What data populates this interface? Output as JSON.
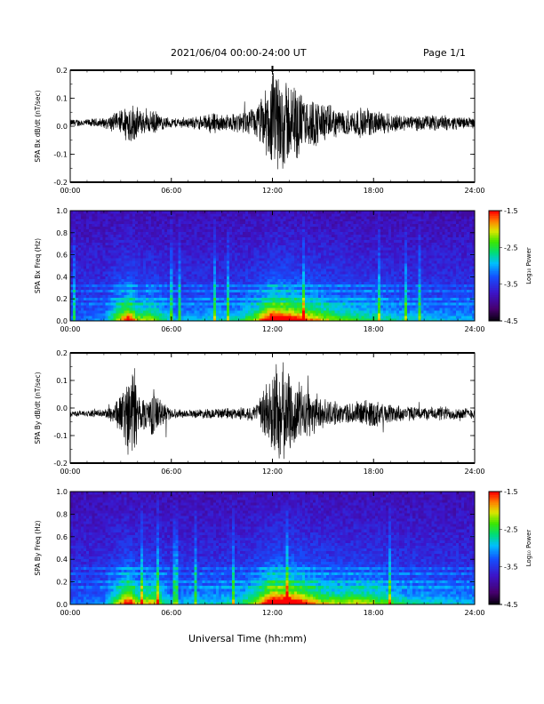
{
  "header": {
    "title": "2021/06/04  00:00-24:00 UT",
    "page": "Page 1/1"
  },
  "x_axis": {
    "label": "Universal Time (hh:mm)",
    "ticks": [
      "00:00",
      "06:00",
      "12:00",
      "18:00",
      "24:00"
    ]
  },
  "chart_data": [
    {
      "type": "line",
      "ylabel": "SPA Bx dB/dt (nT/sec)",
      "xlim": [
        0,
        24
      ],
      "ylim": [
        -0.2,
        0.2
      ],
      "yticks": [
        "-0.2",
        "-0.1",
        "0.0",
        "0.1",
        "0.2"
      ],
      "xticks": [
        "00:00",
        "06:00",
        "12:00",
        "18:00",
        "24:00"
      ],
      "envelope": {
        "x": [
          0,
          1,
          2,
          3,
          3.5,
          4,
          4.5,
          5,
          5.3,
          6,
          7,
          8,
          8.5,
          9,
          10,
          11,
          11.5,
          12,
          12.5,
          13,
          13.5,
          14,
          14.5,
          15,
          16,
          16.5,
          17,
          18,
          19,
          20,
          21,
          22,
          23,
          24
        ],
        "amp": [
          0.015,
          0.015,
          0.02,
          0.05,
          0.09,
          0.06,
          0.04,
          0.05,
          0.03,
          0.02,
          0.02,
          0.03,
          0.05,
          0.03,
          0.04,
          0.06,
          0.12,
          0.2,
          0.2,
          0.17,
          0.14,
          0.09,
          0.1,
          0.08,
          0.05,
          0.05,
          0.06,
          0.05,
          0.04,
          0.03,
          0.03,
          0.03,
          0.025,
          0.02
        ]
      },
      "offset": 0.012
    },
    {
      "type": "heatmap",
      "ylabel": "SPA Bx Freq (Hz)",
      "xlim": [
        0,
        24
      ],
      "ylim": [
        0,
        1.0
      ],
      "yticks": [
        "0.0",
        "0.2",
        "0.4",
        "0.6",
        "0.8",
        "1.0"
      ],
      "xticks": [
        "00:00",
        "06:00",
        "12:00",
        "18:00",
        "24:00"
      ],
      "colorbar": {
        "label": "Log₁₀ Power",
        "range": [
          -4.5,
          -1.5
        ],
        "ticks": [
          "-1.5",
          "-2.5",
          "-3.5",
          "-4.5"
        ]
      },
      "activity": {
        "x": [
          0,
          2,
          3,
          3.5,
          4,
          5,
          6,
          8,
          10,
          11,
          12,
          13,
          14,
          15,
          16,
          18,
          20,
          24
        ],
        "level": [
          0.1,
          0.15,
          0.6,
          0.8,
          0.5,
          0.5,
          0.2,
          0.25,
          0.3,
          0.5,
          0.95,
          0.85,
          0.7,
          0.55,
          0.45,
          0.35,
          0.25,
          0.2
        ]
      },
      "bands_hz": [
        0.15,
        0.2,
        0.28,
        0.32
      ]
    },
    {
      "type": "line",
      "ylabel": "SPA By dB/dt (nT/sec)",
      "xlim": [
        0,
        24
      ],
      "ylim": [
        -0.2,
        0.2
      ],
      "yticks": [
        "-0.2",
        "-0.1",
        "0.0",
        "0.1",
        "0.2"
      ],
      "xticks": [
        "00:00",
        "06:00",
        "12:00",
        "18:00",
        "24:00"
      ],
      "envelope": {
        "x": [
          0,
          1,
          2,
          2.5,
          3,
          3.5,
          3.8,
          4,
          4.5,
          5,
          5.3,
          6,
          7,
          8,
          9,
          10,
          11,
          11.5,
          12,
          12.5,
          13,
          13.5,
          14,
          15,
          16,
          17,
          18,
          18.5,
          19,
          20,
          21,
          22,
          23,
          24
        ],
        "amp": [
          0.012,
          0.012,
          0.015,
          0.04,
          0.08,
          0.17,
          0.2,
          0.1,
          0.06,
          0.1,
          0.06,
          0.02,
          0.015,
          0.02,
          0.02,
          0.025,
          0.03,
          0.1,
          0.2,
          0.2,
          0.17,
          0.13,
          0.1,
          0.06,
          0.04,
          0.05,
          0.06,
          0.04,
          0.04,
          0.03,
          0.025,
          0.03,
          0.025,
          0.02
        ]
      },
      "offset": -0.02
    },
    {
      "type": "heatmap",
      "ylabel": "SPA By Freq (Hz)",
      "xlim": [
        0,
        24
      ],
      "ylim": [
        0,
        1.0
      ],
      "yticks": [
        "0.0",
        "0.2",
        "0.4",
        "0.6",
        "0.8",
        "1.0"
      ],
      "xticks": [
        "00:00",
        "06:00",
        "12:00",
        "18:00",
        "24:00"
      ],
      "colorbar": {
        "label": "Log₁₀ Power",
        "range": [
          -4.5,
          -1.5
        ],
        "ticks": [
          "-1.5",
          "-2.5",
          "-3.5",
          "-4.5"
        ]
      },
      "activity": {
        "x": [
          0,
          2,
          3,
          3.5,
          4,
          5,
          6,
          8,
          10,
          11,
          12,
          13,
          14,
          15,
          16,
          17,
          18,
          20,
          24
        ],
        "level": [
          0.1,
          0.15,
          0.6,
          0.85,
          0.5,
          0.6,
          0.2,
          0.25,
          0.3,
          0.5,
          1.0,
          0.95,
          0.75,
          0.55,
          0.5,
          0.55,
          0.5,
          0.3,
          0.2
        ]
      },
      "bands_hz": [
        0.15,
        0.2,
        0.28,
        0.32
      ]
    }
  ]
}
